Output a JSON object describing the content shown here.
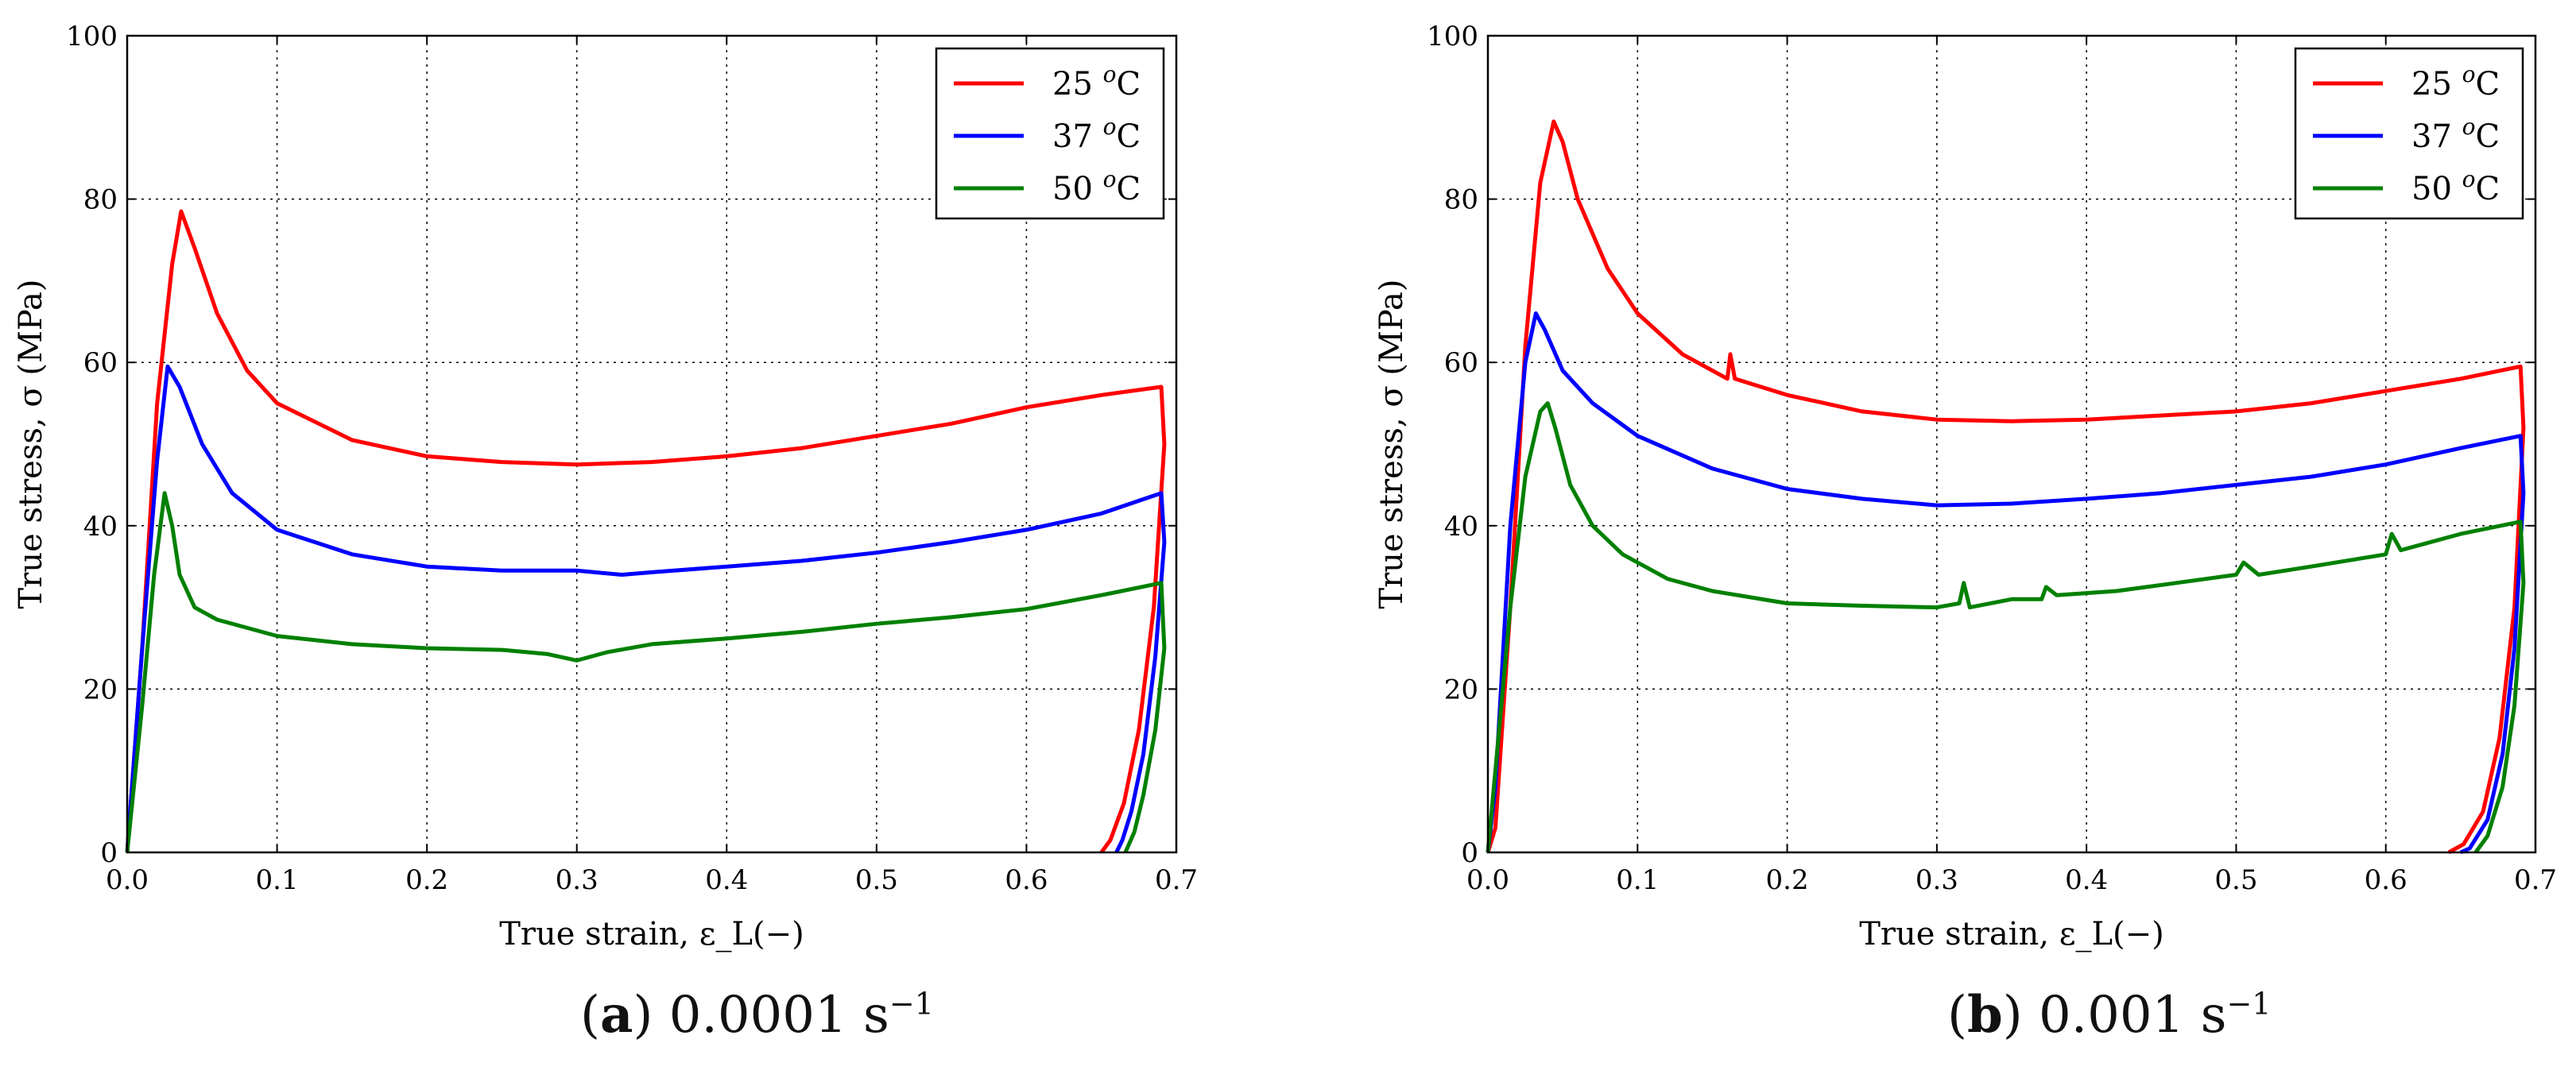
{
  "chart_data": [
    {
      "type": "line",
      "caption": {
        "letter": "a",
        "rate": "0.0001 s",
        "exponent": "−1"
      },
      "xlabel": "True strain, ε_L(−)",
      "ylabel": "True stress, σ (MPa)",
      "xlim": [
        0,
        0.7
      ],
      "ylim": [
        0,
        100
      ],
      "xticks": [
        "0.0",
        "0.1",
        "0.2",
        "0.3",
        "0.4",
        "0.5",
        "0.6",
        "0.7"
      ],
      "yticks": [
        "0",
        "20",
        "40",
        "60",
        "80",
        "100"
      ],
      "grid": true,
      "legend_position": "top-right",
      "series": [
        {
          "name": "25 °C",
          "label_base": "25 ",
          "label_sup": "o",
          "label_unit": "C",
          "color": "#ff0000",
          "points": [
            [
              0,
              0
            ],
            [
              0.01,
              25
            ],
            [
              0.02,
              55
            ],
            [
              0.03,
              72
            ],
            [
              0.036,
              78.5
            ],
            [
              0.045,
              74
            ],
            [
              0.06,
              66
            ],
            [
              0.08,
              59
            ],
            [
              0.1,
              55
            ],
            [
              0.15,
              50.5
            ],
            [
              0.2,
              48.5
            ],
            [
              0.25,
              47.8
            ],
            [
              0.3,
              47.5
            ],
            [
              0.35,
              47.8
            ],
            [
              0.4,
              48.5
            ],
            [
              0.45,
              49.5
            ],
            [
              0.5,
              51
            ],
            [
              0.55,
              52.5
            ],
            [
              0.6,
              54.5
            ],
            [
              0.65,
              56
            ],
            [
              0.69,
              57
            ],
            [
              0.692,
              50
            ],
            [
              0.685,
              30
            ],
            [
              0.675,
              15
            ],
            [
              0.665,
              6
            ],
            [
              0.656,
              1.5
            ],
            [
              0.65,
              0
            ]
          ]
        },
        {
          "name": "37 °C",
          "label_base": "37 ",
          "label_sup": "o",
          "label_unit": "C",
          "color": "#0000ff",
          "points": [
            [
              0,
              0
            ],
            [
              0.01,
              25
            ],
            [
              0.02,
              48
            ],
            [
              0.027,
              59.5
            ],
            [
              0.035,
              57
            ],
            [
              0.05,
              50
            ],
            [
              0.07,
              44
            ],
            [
              0.1,
              39.5
            ],
            [
              0.15,
              36.5
            ],
            [
              0.2,
              35
            ],
            [
              0.25,
              34.5
            ],
            [
              0.3,
              34.5
            ],
            [
              0.33,
              34
            ],
            [
              0.35,
              34.3
            ],
            [
              0.4,
              35
            ],
            [
              0.45,
              35.7
            ],
            [
              0.5,
              36.7
            ],
            [
              0.55,
              38
            ],
            [
              0.6,
              39.5
            ],
            [
              0.65,
              41.5
            ],
            [
              0.69,
              44
            ],
            [
              0.692,
              38
            ],
            [
              0.686,
              24
            ],
            [
              0.678,
              12
            ],
            [
              0.67,
              5
            ],
            [
              0.664,
              1.5
            ],
            [
              0.66,
              0
            ]
          ]
        },
        {
          "name": "50 °C",
          "label_base": "50 ",
          "label_sup": "o",
          "label_unit": "C",
          "color": "#008000",
          "points": [
            [
              0,
              0
            ],
            [
              0.01,
              18
            ],
            [
              0.018,
              34
            ],
            [
              0.025,
              44
            ],
            [
              0.03,
              40
            ],
            [
              0.035,
              34
            ],
            [
              0.045,
              30
            ],
            [
              0.06,
              28.5
            ],
            [
              0.1,
              26.5
            ],
            [
              0.15,
              25.5
            ],
            [
              0.2,
              25
            ],
            [
              0.25,
              24.8
            ],
            [
              0.28,
              24.3
            ],
            [
              0.3,
              23.5
            ],
            [
              0.32,
              24.5
            ],
            [
              0.35,
              25.5
            ],
            [
              0.4,
              26.2
            ],
            [
              0.45,
              27
            ],
            [
              0.5,
              28
            ],
            [
              0.55,
              28.8
            ],
            [
              0.6,
              29.8
            ],
            [
              0.65,
              31.5
            ],
            [
              0.69,
              33
            ],
            [
              0.692,
              25
            ],
            [
              0.686,
              15
            ],
            [
              0.678,
              7
            ],
            [
              0.672,
              2.5
            ],
            [
              0.666,
              0
            ]
          ]
        }
      ]
    },
    {
      "type": "line",
      "caption": {
        "letter": "b",
        "rate": "0.001 s",
        "exponent": "−1"
      },
      "xlabel": "True strain, ε_L(−)",
      "ylabel": "True stress, σ (MPa)",
      "xlim": [
        0,
        0.7
      ],
      "ylim": [
        0,
        100
      ],
      "xticks": [
        "0.0",
        "0.1",
        "0.2",
        "0.3",
        "0.4",
        "0.5",
        "0.6",
        "0.7"
      ],
      "yticks": [
        "0",
        "20",
        "40",
        "60",
        "80",
        "100"
      ],
      "grid": true,
      "legend_position": "top-right",
      "series": [
        {
          "name": "25 °C",
          "label_base": "25 ",
          "label_sup": "o",
          "label_unit": "C",
          "color": "#ff0000",
          "points": [
            [
              0,
              0
            ],
            [
              0.005,
              3
            ],
            [
              0.015,
              30
            ],
            [
              0.025,
              62
            ],
            [
              0.035,
              82
            ],
            [
              0.044,
              89.5
            ],
            [
              0.05,
              87
            ],
            [
              0.06,
              80
            ],
            [
              0.08,
              71.5
            ],
            [
              0.1,
              66
            ],
            [
              0.13,
              61
            ],
            [
              0.16,
              58
            ],
            [
              0.162,
              61
            ],
            [
              0.165,
              58
            ],
            [
              0.2,
              56
            ],
            [
              0.25,
              54
            ],
            [
              0.3,
              53
            ],
            [
              0.35,
              52.8
            ],
            [
              0.4,
              53
            ],
            [
              0.45,
              53.5
            ],
            [
              0.5,
              54
            ],
            [
              0.55,
              55
            ],
            [
              0.6,
              56.5
            ],
            [
              0.65,
              58
            ],
            [
              0.69,
              59.5
            ],
            [
              0.692,
              52
            ],
            [
              0.686,
              30
            ],
            [
              0.676,
              14
            ],
            [
              0.665,
              5
            ],
            [
              0.652,
              1
            ],
            [
              0.642,
              0
            ]
          ]
        },
        {
          "name": "37 °C",
          "label_base": "37 ",
          "label_sup": "o",
          "label_unit": "C",
          "color": "#0000ff",
          "points": [
            [
              0,
              0
            ],
            [
              0.005,
              8
            ],
            [
              0.015,
              40
            ],
            [
              0.025,
              60
            ],
            [
              0.032,
              66
            ],
            [
              0.038,
              64
            ],
            [
              0.05,
              59
            ],
            [
              0.07,
              55
            ],
            [
              0.1,
              51
            ],
            [
              0.15,
              47
            ],
            [
              0.2,
              44.5
            ],
            [
              0.25,
              43.3
            ],
            [
              0.3,
              42.5
            ],
            [
              0.35,
              42.7
            ],
            [
              0.4,
              43.3
            ],
            [
              0.45,
              44
            ],
            [
              0.5,
              45
            ],
            [
              0.55,
              46
            ],
            [
              0.6,
              47.5
            ],
            [
              0.65,
              49.5
            ],
            [
              0.69,
              51
            ],
            [
              0.692,
              44
            ],
            [
              0.686,
              25
            ],
            [
              0.678,
              12
            ],
            [
              0.668,
              4
            ],
            [
              0.656,
              0.5
            ],
            [
              0.65,
              0
            ]
          ]
        },
        {
          "name": "50 °C",
          "label_base": "50 ",
          "label_sup": "o",
          "label_unit": "C",
          "color": "#008000",
          "points": [
            [
              0,
              0
            ],
            [
              0.005,
              10
            ],
            [
              0.015,
              30
            ],
            [
              0.025,
              46
            ],
            [
              0.035,
              54
            ],
            [
              0.04,
              55
            ],
            [
              0.045,
              52
            ],
            [
              0.055,
              45
            ],
            [
              0.07,
              40
            ],
            [
              0.09,
              36.5
            ],
            [
              0.12,
              33.5
            ],
            [
              0.15,
              32
            ],
            [
              0.2,
              30.5
            ],
            [
              0.25,
              30.2
            ],
            [
              0.3,
              30
            ],
            [
              0.315,
              30.5
            ],
            [
              0.318,
              33
            ],
            [
              0.322,
              30
            ],
            [
              0.35,
              31
            ],
            [
              0.37,
              31
            ],
            [
              0.373,
              32.5
            ],
            [
              0.38,
              31.5
            ],
            [
              0.42,
              32
            ],
            [
              0.46,
              33
            ],
            [
              0.5,
              34
            ],
            [
              0.505,
              35.5
            ],
            [
              0.515,
              34
            ],
            [
              0.55,
              35
            ],
            [
              0.6,
              36.5
            ],
            [
              0.604,
              39
            ],
            [
              0.61,
              37
            ],
            [
              0.65,
              39
            ],
            [
              0.69,
              40.5
            ],
            [
              0.692,
              33
            ],
            [
              0.686,
              18
            ],
            [
              0.678,
              8
            ],
            [
              0.668,
              2
            ],
            [
              0.66,
              0
            ]
          ]
        }
      ]
    }
  ]
}
